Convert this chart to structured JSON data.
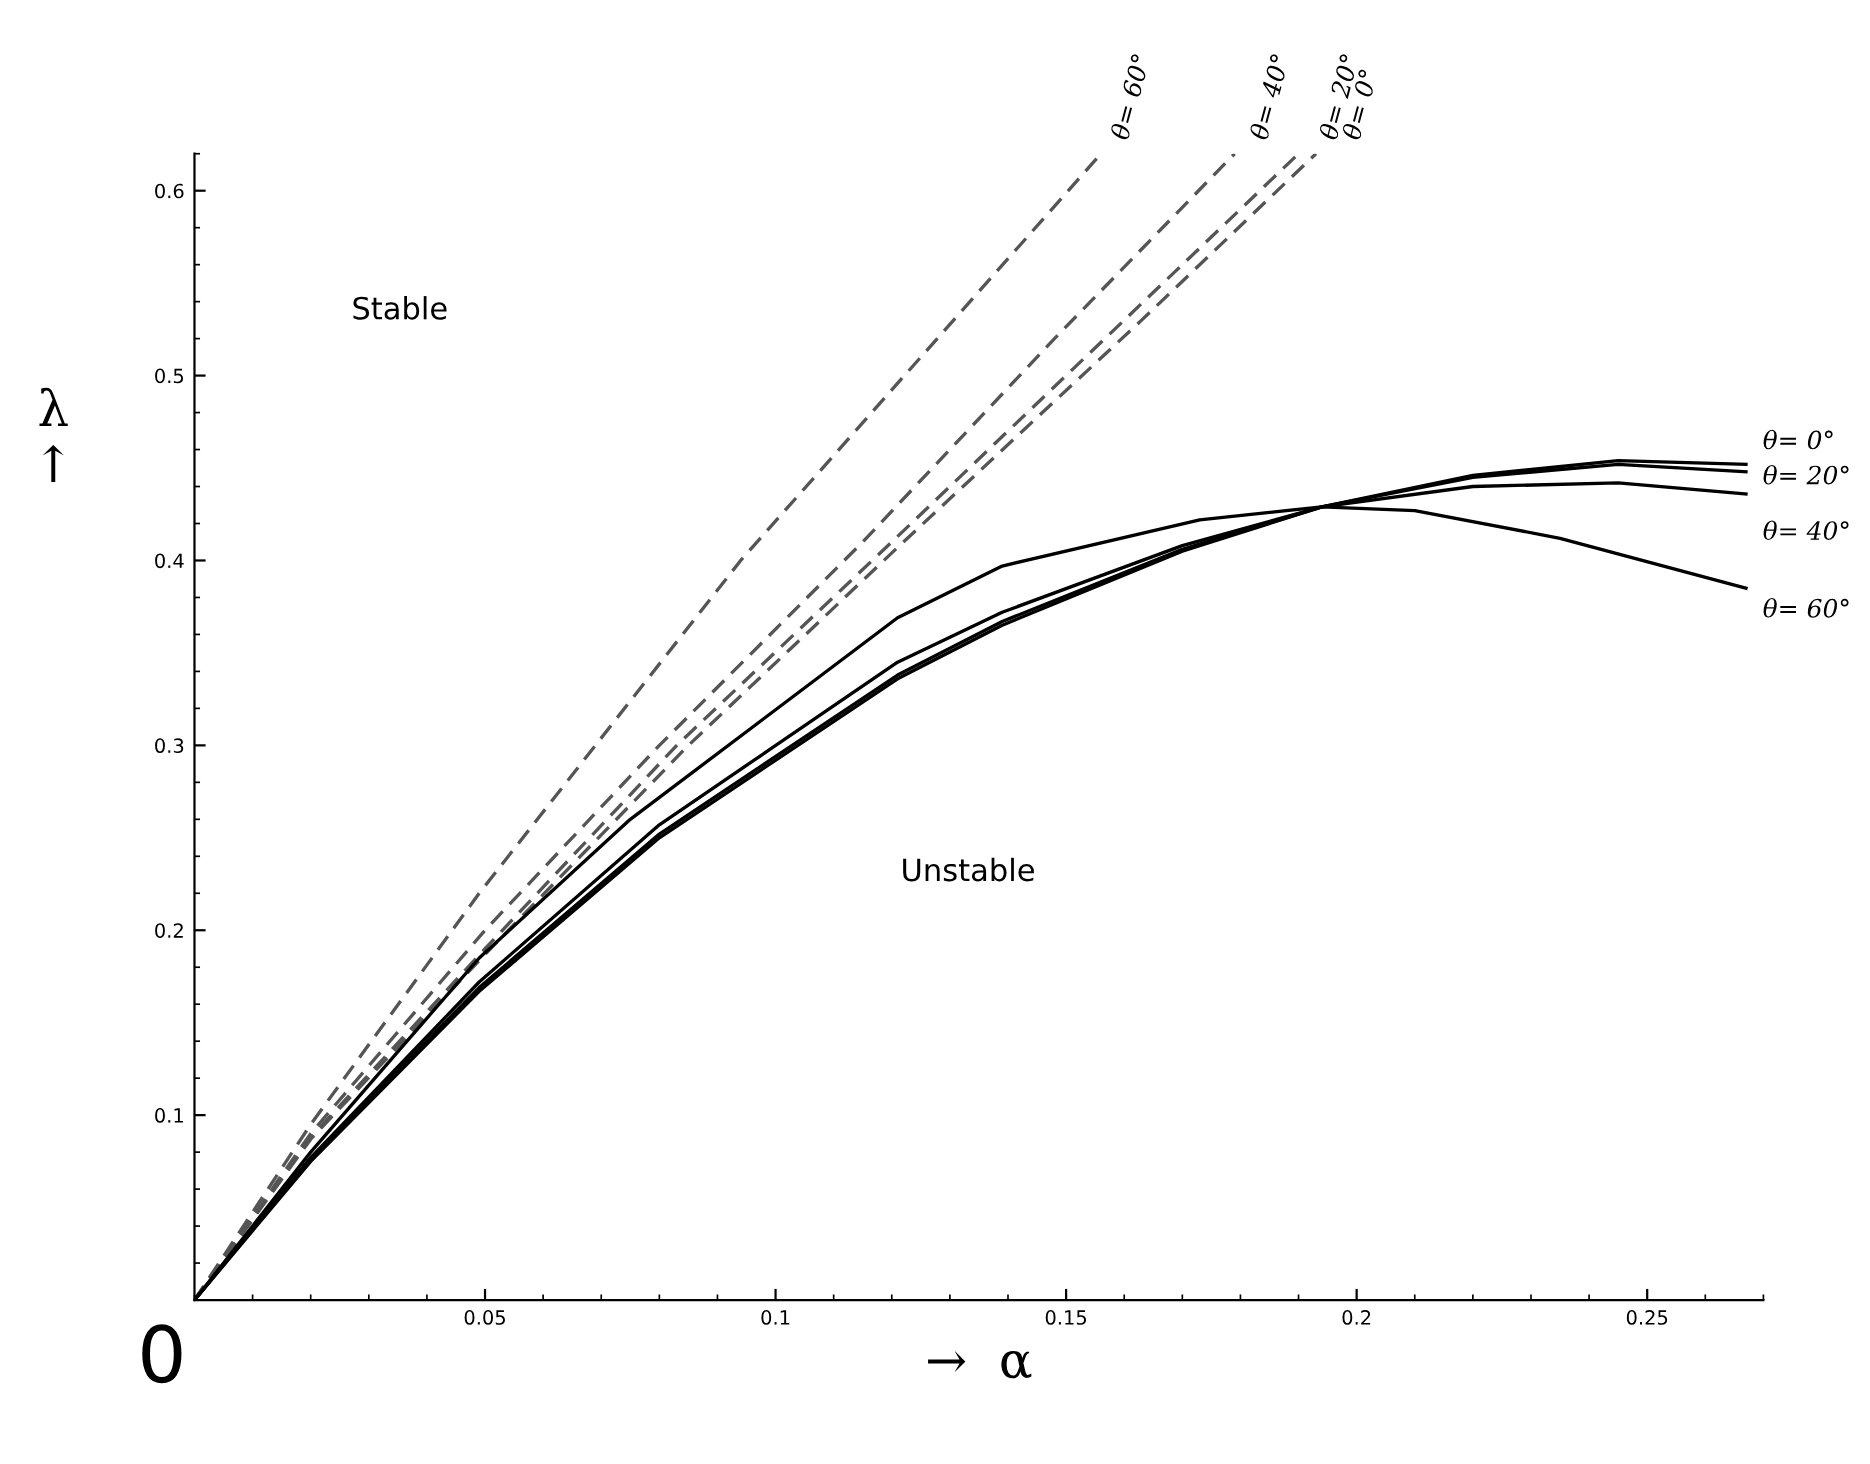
{
  "chart_data": {
    "type": "line",
    "xlabel": "→  α",
    "ylabel": "λ\n↑",
    "xlim": [
      0,
      0.27
    ],
    "ylim": [
      0,
      0.62
    ],
    "xticks": [
      0.05,
      0.1,
      0.15,
      0.2,
      0.25
    ],
    "yticks": [
      0.1,
      0.2,
      0.3,
      0.4,
      0.5,
      0.6
    ],
    "grid": false,
    "legend": false,
    "marker": "none",
    "annotations": [
      "Stable",
      "Unstable",
      "0"
    ],
    "series": [
      {
        "name": "θ= 60°",
        "color": "#555555",
        "line_style": "dashed",
        "x": [
          0,
          0.02,
          0.049,
          0.094,
          0.125,
          0.156
        ],
        "values": [
          0,
          0.095,
          0.22,
          0.4,
          0.51,
          0.62
        ]
      },
      {
        "name": "θ= 40°",
        "color": "#555555",
        "line_style": "dashed",
        "x": [
          0,
          0.02,
          0.05,
          0.08,
          0.115,
          0.148,
          0.179
        ],
        "values": [
          0,
          0.09,
          0.2,
          0.3,
          0.41,
          0.52,
          0.62
        ]
      },
      {
        "name": "θ= 20°",
        "color": "#555555",
        "line_style": "dashed",
        "x": [
          0,
          0.02,
          0.05,
          0.083,
          0.12,
          0.16,
          0.19
        ],
        "values": [
          0,
          0.088,
          0.19,
          0.3,
          0.41,
          0.53,
          0.62
        ]
      },
      {
        "name": "θ= 0°",
        "color": "#555555",
        "line_style": "dashed",
        "x": [
          0,
          0.02,
          0.05,
          0.085,
          0.122,
          0.163,
          0.193
        ],
        "values": [
          0,
          0.087,
          0.187,
          0.3,
          0.41,
          0.53,
          0.62
        ]
      },
      {
        "name": "θ= 0°",
        "color": "#000000",
        "line_style": "solid",
        "x": [
          0,
          0.02,
          0.049,
          0.08,
          0.121,
          0.139,
          0.17,
          0.194,
          0.22,
          0.245,
          0.267
        ],
        "values": [
          0,
          0.075,
          0.167,
          0.25,
          0.336,
          0.365,
          0.405,
          0.429,
          0.446,
          0.454,
          0.452
        ]
      },
      {
        "name": "θ= 20°",
        "color": "#000000",
        "line_style": "solid",
        "x": [
          0,
          0.02,
          0.049,
          0.08,
          0.121,
          0.139,
          0.17,
          0.194,
          0.22,
          0.245,
          0.267
        ],
        "values": [
          0,
          0.076,
          0.169,
          0.252,
          0.338,
          0.367,
          0.406,
          0.429,
          0.445,
          0.452,
          0.448
        ]
      },
      {
        "name": "θ= 40°",
        "color": "#000000",
        "line_style": "solid",
        "x": [
          0,
          0.02,
          0.049,
          0.08,
          0.121,
          0.139,
          0.17,
          0.194,
          0.22,
          0.245,
          0.267
        ],
        "values": [
          0,
          0.077,
          0.172,
          0.257,
          0.345,
          0.372,
          0.408,
          0.429,
          0.44,
          0.442,
          0.436
        ]
      },
      {
        "name": "θ= 60°",
        "color": "#000000",
        "line_style": "solid",
        "x": [
          0,
          0.02,
          0.049,
          0.075,
          0.121,
          0.139,
          0.173,
          0.194,
          0.21,
          0.235,
          0.267
        ],
        "values": [
          0,
          0.08,
          0.185,
          0.26,
          0.369,
          0.397,
          0.422,
          0.429,
          0.427,
          0.412,
          0.385
        ]
      }
    ]
  }
}
